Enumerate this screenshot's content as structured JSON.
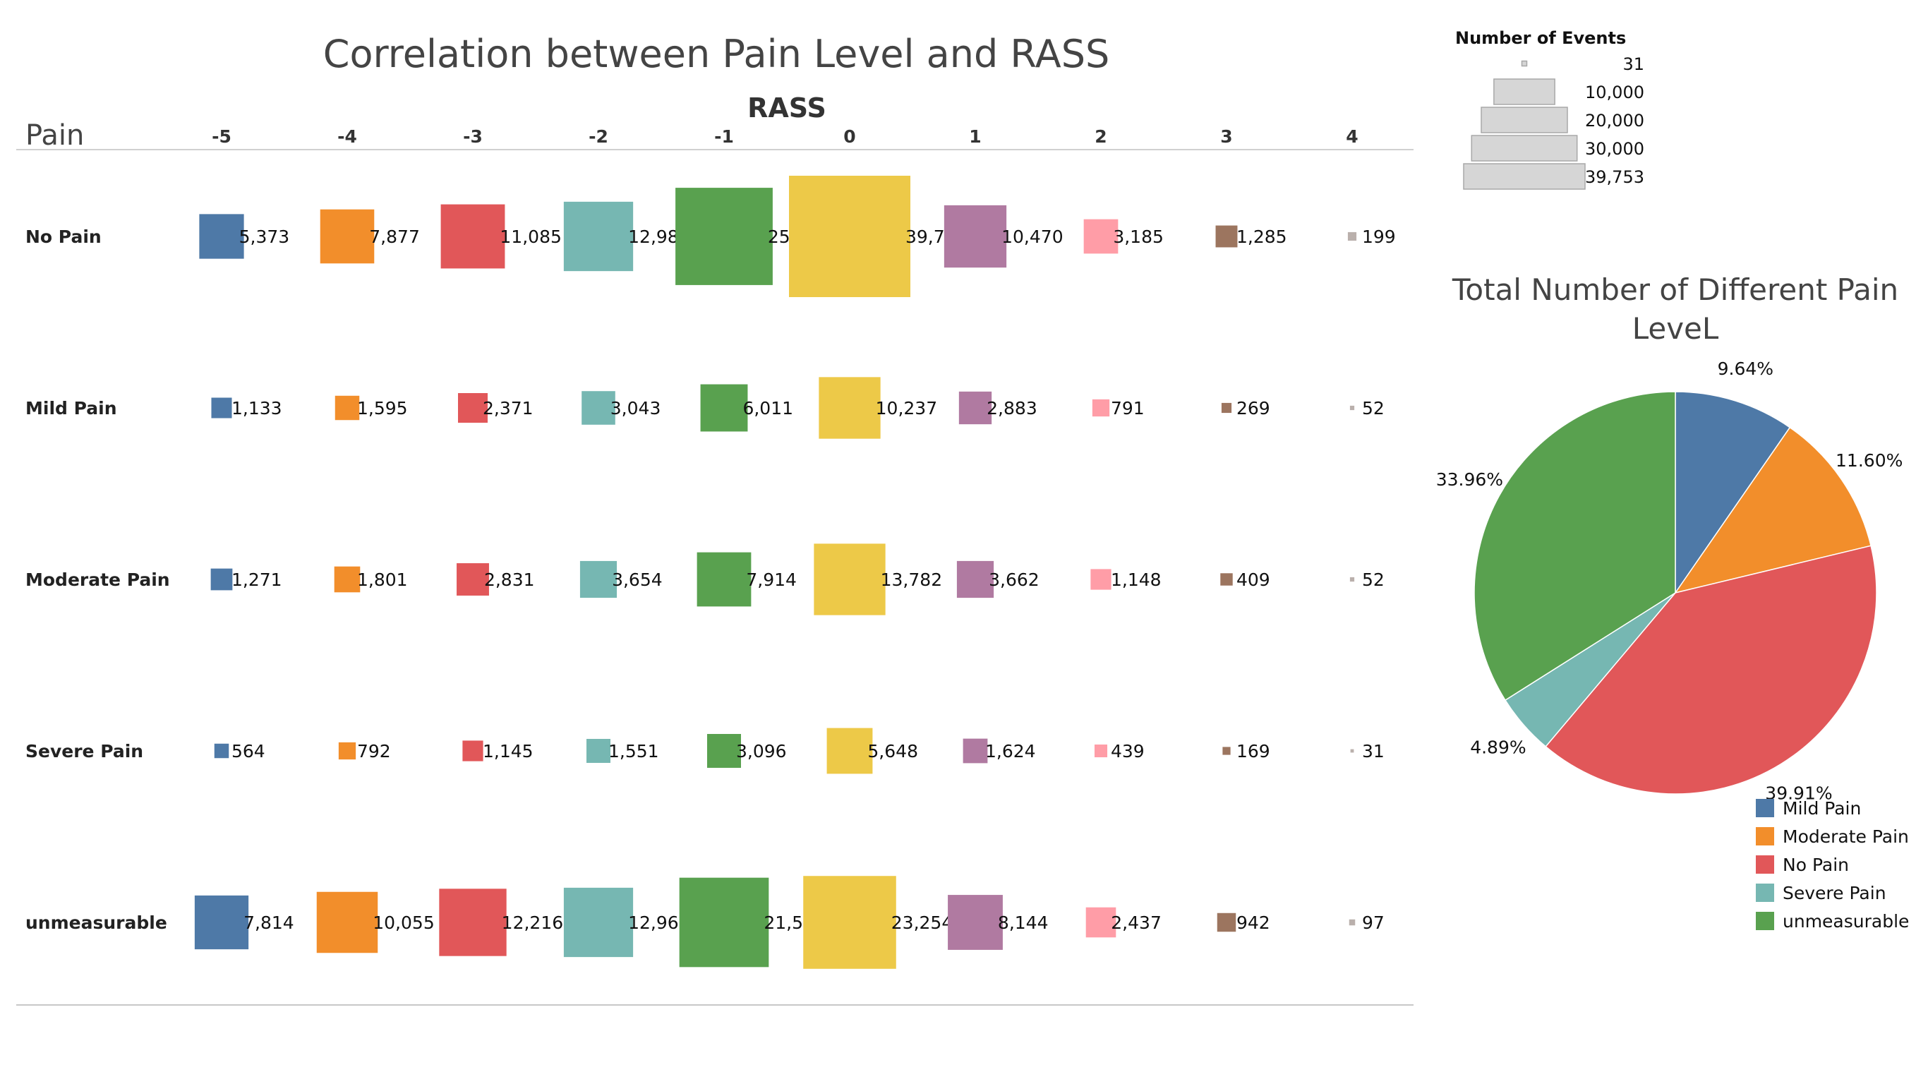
{
  "chart_data": [
    {
      "type": "heatmap",
      "title": "Correlation between Pain Level and RASS",
      "column_header": "RASS",
      "row_header": "Pain",
      "categories": [
        "-5",
        "-4",
        "-3",
        "-2",
        "-1",
        "0",
        "1",
        "2",
        "3",
        "4"
      ],
      "rows": [
        "No Pain",
        "Mild Pain",
        "Moderate Pain",
        "Severe Pain",
        "unmeasurable"
      ],
      "values": [
        [
          5373,
          7877,
          11085,
          12985,
          25520,
          39753,
          10470,
          3185,
          1285,
          199
        ],
        [
          1133,
          1595,
          2371,
          3043,
          6011,
          10237,
          2883,
          791,
          269,
          52
        ],
        [
          1271,
          1801,
          2831,
          3654,
          7914,
          13782,
          3662,
          1148,
          409,
          52
        ],
        [
          564,
          792,
          1145,
          1551,
          3096,
          5648,
          1624,
          439,
          169,
          31
        ],
        [
          7814,
          10055,
          12216,
          12962,
          21554,
          23254,
          8144,
          2437,
          942,
          97
        ]
      ],
      "value_labels": [
        [
          "5,373",
          "7,877",
          "11,085",
          "12,985",
          "25,520",
          "39,753",
          "10,470",
          "3,185",
          "1,285",
          "199"
        ],
        [
          "1,133",
          "1,595",
          "2,371",
          "3,043",
          "6,011",
          "10,237",
          "2,883",
          "791",
          "269",
          "52"
        ],
        [
          "1,271",
          "1,801",
          "2,831",
          "3,654",
          "7,914",
          "13,782",
          "3,662",
          "1,148",
          "409",
          "52"
        ],
        [
          "564",
          "792",
          "1,145",
          "1,551",
          "3,096",
          "5,648",
          "1,624",
          "439",
          "169",
          "31"
        ],
        [
          "7,814",
          "10,055",
          "12,216",
          "12,962",
          "21,554",
          "23,254",
          "8,144",
          "2,437",
          "942",
          "97"
        ]
      ],
      "column_colors": [
        "#4e79a7",
        "#f28e2b",
        "#e15759",
        "#76b7b2",
        "#59a14f",
        "#edc948",
        "#b07aa1",
        "#ff9da7",
        "#9c755f",
        "#bab0ac"
      ],
      "size_legend": {
        "title": "Number of Events",
        "items": [
          {
            "value": 31,
            "label": "31"
          },
          {
            "value": 10000,
            "label": "10,000"
          },
          {
            "value": 20000,
            "label": "20,000"
          },
          {
            "value": 30000,
            "label": "30,000"
          },
          {
            "value": 39753,
            "label": "39,753"
          }
        ]
      }
    },
    {
      "type": "pie",
      "title": "Total Number of Different Pain LeveL",
      "slices": [
        {
          "name": "Mild Pain",
          "percent": 9.64,
          "label": "9.64%",
          "color": "#4e79a7"
        },
        {
          "name": "Moderate Pain",
          "percent": 11.6,
          "label": "11.60%",
          "color": "#f28e2b"
        },
        {
          "name": "No Pain",
          "percent": 39.91,
          "label": "39.91%",
          "color": "#e15759"
        },
        {
          "name": "Severe Pain",
          "percent": 4.89,
          "label": "4.89%",
          "color": "#76b7b2"
        },
        {
          "name": "unmeasurable",
          "percent": 33.96,
          "label": "33.96%",
          "color": "#59a14f"
        }
      ],
      "legend": [
        {
          "label": "Mild Pain",
          "color": "#4e79a7"
        },
        {
          "label": "Moderate Pain",
          "color": "#f28e2b"
        },
        {
          "label": "No Pain",
          "color": "#e15759"
        },
        {
          "label": "Severe Pain",
          "color": "#76b7b2"
        },
        {
          "label": "unmeasurable",
          "color": "#59a14f"
        }
      ]
    }
  ]
}
